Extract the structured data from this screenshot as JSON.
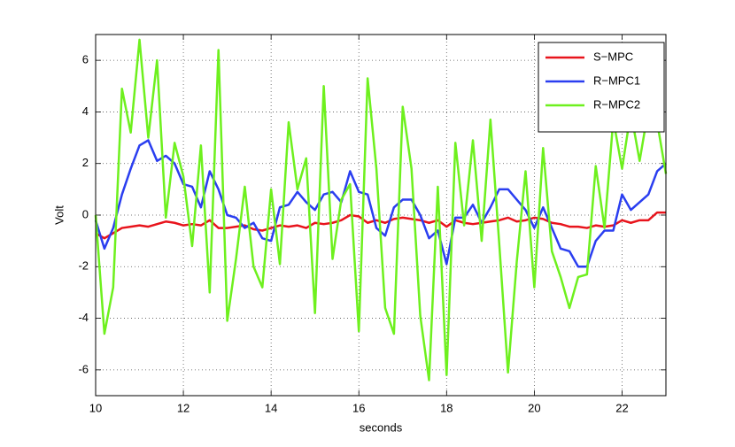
{
  "chart_data": {
    "type": "line",
    "x_label": "seconds",
    "y_label": "Volt",
    "x": [
      10.0,
      10.2,
      10.4,
      10.6,
      10.8,
      11.0,
      11.2,
      11.4,
      11.6,
      11.8,
      12.0,
      12.2,
      12.4,
      12.6,
      12.8,
      13.0,
      13.2,
      13.4,
      13.6,
      13.8,
      14.0,
      14.2,
      14.4,
      14.6,
      14.8,
      15.0,
      15.2,
      15.4,
      15.6,
      15.8,
      16.0,
      16.2,
      16.4,
      16.6,
      16.8,
      17.0,
      17.2,
      17.4,
      17.6,
      17.8,
      18.0,
      18.2,
      18.4,
      18.6,
      18.8,
      19.0,
      19.2,
      19.4,
      19.6,
      19.8,
      20.0,
      20.2,
      20.4,
      20.6,
      20.8,
      21.0,
      21.2,
      21.4,
      21.6,
      21.8,
      22.0,
      22.2,
      22.4,
      22.6,
      22.8,
      23.0
    ],
    "series": [
      {
        "name": "S−MPC",
        "color": "#e8141c",
        "values": [
          -0.7,
          -0.9,
          -0.7,
          -0.5,
          -0.45,
          -0.4,
          -0.45,
          -0.35,
          -0.25,
          -0.3,
          -0.4,
          -0.35,
          -0.4,
          -0.2,
          -0.5,
          -0.5,
          -0.45,
          -0.4,
          -0.55,
          -0.6,
          -0.5,
          -0.4,
          -0.45,
          -0.4,
          -0.5,
          -0.3,
          -0.35,
          -0.3,
          -0.2,
          0.0,
          -0.05,
          -0.3,
          -0.2,
          -0.3,
          -0.15,
          -0.1,
          -0.15,
          -0.2,
          -0.3,
          -0.2,
          -0.45,
          -0.2,
          -0.3,
          -0.35,
          -0.3,
          -0.25,
          -0.2,
          -0.1,
          -0.25,
          -0.2,
          -0.1,
          -0.15,
          -0.3,
          -0.35,
          -0.45,
          -0.45,
          -0.5,
          -0.4,
          -0.45,
          -0.4,
          -0.2,
          -0.3,
          -0.2,
          -0.2,
          0.1,
          0.1
        ]
      },
      {
        "name": "R−MPC1",
        "color": "#2a3ef0",
        "values": [
          -0.2,
          -1.3,
          -0.5,
          0.8,
          1.8,
          2.7,
          2.9,
          2.1,
          2.3,
          2.0,
          1.2,
          1.1,
          0.3,
          1.7,
          1.0,
          0.0,
          -0.1,
          -0.5,
          -0.3,
          -0.9,
          -1.0,
          0.3,
          0.4,
          0.9,
          0.5,
          0.2,
          0.8,
          0.9,
          0.5,
          1.7,
          0.9,
          0.8,
          -0.5,
          -0.8,
          0.3,
          0.6,
          0.6,
          0.0,
          -0.9,
          -0.6,
          -1.9,
          -0.1,
          -0.1,
          0.4,
          -0.3,
          0.3,
          1.0,
          1.0,
          0.6,
          0.2,
          -0.5,
          0.3,
          -0.5,
          -1.3,
          -1.4,
          -2.0,
          -2.0,
          -1.0,
          -0.6,
          -0.6,
          0.8,
          0.2,
          0.5,
          0.8,
          1.7,
          2.0
        ]
      },
      {
        "name": "R−MPC2",
        "color": "#6ef01e",
        "values": [
          0.0,
          -4.6,
          -2.8,
          4.9,
          3.2,
          6.8,
          3.0,
          6.0,
          -0.1,
          2.8,
          1.5,
          -1.2,
          2.7,
          -3.0,
          6.4,
          -4.1,
          -1.7,
          1.1,
          -2.0,
          -2.8,
          1.0,
          -1.9,
          3.6,
          1.0,
          2.2,
          -3.8,
          5.0,
          -1.7,
          0.6,
          1.2,
          -4.5,
          5.3,
          1.8,
          -3.6,
          -4.6,
          4.2,
          1.8,
          -3.9,
          -6.4,
          1.1,
          -6.2,
          2.8,
          -0.4,
          2.9,
          -1.0,
          3.7,
          -1.1,
          -6.1,
          -1.8,
          1.7,
          -2.8,
          2.6,
          -1.4,
          -2.4,
          -3.6,
          -2.4,
          -2.3,
          1.9,
          -0.5,
          3.7,
          1.8,
          4.0,
          2.1,
          4.1,
          3.6,
          1.6
        ]
      }
    ],
    "xlim": [
      10,
      23
    ],
    "ylim": [
      -7,
      7
    ],
    "xticks": [
      10,
      12,
      14,
      16,
      18,
      20,
      22
    ],
    "yticks": [
      -6,
      -4,
      -2,
      0,
      2,
      4,
      6
    ],
    "grid": true,
    "legend": "northeast"
  }
}
